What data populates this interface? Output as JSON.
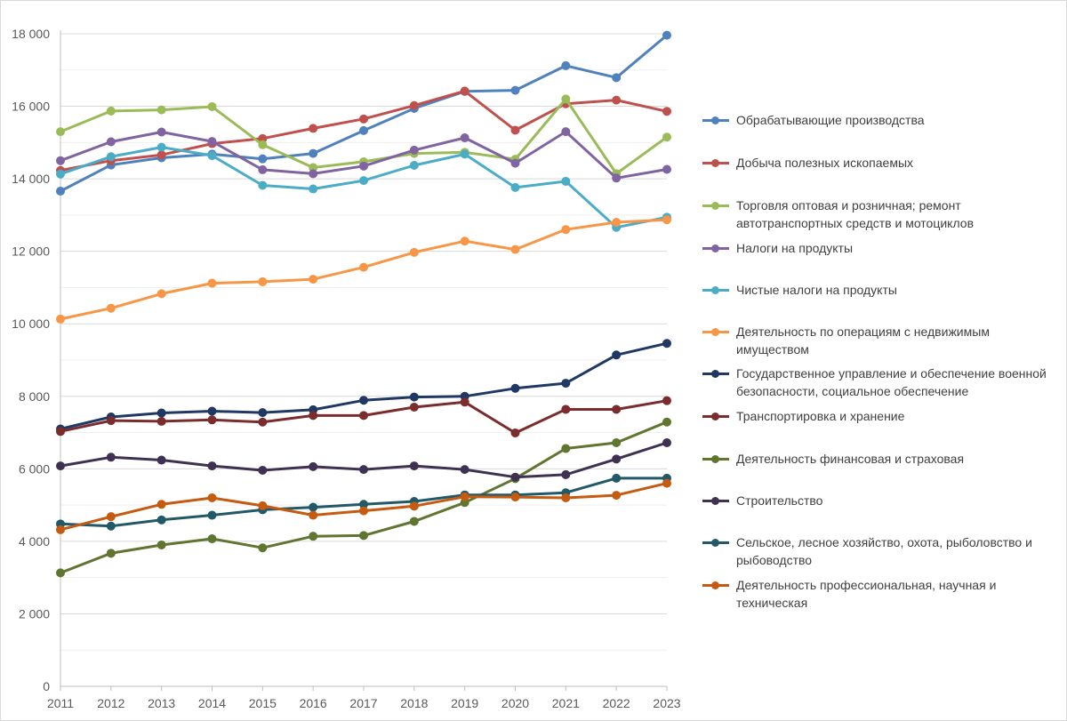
{
  "chart_data": {
    "type": "line",
    "title": "",
    "xlabel": "",
    "ylabel": "",
    "x": [
      "2011",
      "2012",
      "2013",
      "2014",
      "2015",
      "2016",
      "2017",
      "2018",
      "2019",
      "2020",
      "2021",
      "2022",
      "2023"
    ],
    "ylim": [
      0,
      18000
    ],
    "yticks": [
      0,
      2000,
      4000,
      6000,
      8000,
      10000,
      12000,
      14000,
      16000,
      18000
    ],
    "ytick_labels": [
      "0",
      "2 000",
      "4 000",
      "6 000",
      "8 000",
      "10 000",
      "12 000",
      "14 000",
      "16 000",
      "18 000"
    ],
    "grid": true,
    "legend_position": "right",
    "series": [
      {
        "name": "Обрабатывающие производства",
        "color": "#4f81bd",
        "values": [
          13660,
          14380,
          14580,
          14680,
          14550,
          14700,
          15330,
          15940,
          16410,
          16440,
          17120,
          16790,
          17960
        ]
      },
      {
        "name": "Добыча полезных ископаемых",
        "color": "#c0504d",
        "values": [
          14230,
          14500,
          14660,
          14970,
          15110,
          15390,
          15650,
          16020,
          16420,
          15340,
          16070,
          16170,
          15860
        ]
      },
      {
        "name": "Торговля оптовая и розничная; ремонт автотранспортных средств и мотоциклов",
        "color": "#9bbb59",
        "values": [
          15300,
          15870,
          15900,
          15990,
          14940,
          14310,
          14470,
          14700,
          14730,
          14540,
          16200,
          14140,
          15150
        ]
      },
      {
        "name": "Налоги на продукты",
        "color": "#8064a2",
        "values": [
          14500,
          15020,
          15290,
          15030,
          14250,
          14140,
          14350,
          14790,
          15130,
          14430,
          15300,
          14020,
          14260
        ]
      },
      {
        "name": "Чистые налоги на продукты",
        "color": "#4bacc6",
        "values": [
          14130,
          14610,
          14870,
          14640,
          13820,
          13720,
          13950,
          14370,
          14680,
          13760,
          13930,
          12660,
          12940
        ]
      },
      {
        "name": "Деятельность по операциям с недвижимым имуществом",
        "color": "#f79646",
        "values": [
          10130,
          10430,
          10830,
          11120,
          11160,
          11230,
          11560,
          11970,
          12280,
          12050,
          12600,
          12800,
          12870
        ]
      },
      {
        "name": "Государственное управление и обеспечение военной безопасности, социальное обеспечение",
        "color": "#1f3864",
        "values": [
          7100,
          7430,
          7540,
          7590,
          7550,
          7630,
          7890,
          7980,
          8000,
          8220,
          8360,
          9140,
          9460
        ]
      },
      {
        "name": "Транспортировка и хранение",
        "color": "#7b2c2c",
        "values": [
          7030,
          7330,
          7310,
          7350,
          7290,
          7470,
          7470,
          7700,
          7840,
          6990,
          7640,
          7640,
          7880
        ]
      },
      {
        "name": "Деятельность финансовая и страховая",
        "color": "#5f7530",
        "values": [
          3130,
          3670,
          3900,
          4070,
          3820,
          4140,
          4160,
          4550,
          5070,
          5730,
          6560,
          6720,
          7290
        ]
      },
      {
        "name": "Строительство",
        "color": "#403152",
        "values": [
          6080,
          6320,
          6240,
          6080,
          5960,
          6060,
          5980,
          6080,
          5980,
          5770,
          5840,
          6270,
          6720
        ]
      },
      {
        "name": "Сельское, лесное хозяйство, охота, рыболовство и рыбоводство",
        "color": "#215968",
        "values": [
          4480,
          4420,
          4590,
          4720,
          4870,
          4940,
          5020,
          5100,
          5280,
          5280,
          5340,
          5740,
          5740
        ]
      },
      {
        "name": "Деятельность профессиональная, научная и техническая",
        "color": "#c55a11",
        "values": [
          4320,
          4680,
          5020,
          5200,
          4980,
          4720,
          4840,
          4970,
          5230,
          5220,
          5200,
          5270,
          5600
        ]
      }
    ]
  }
}
